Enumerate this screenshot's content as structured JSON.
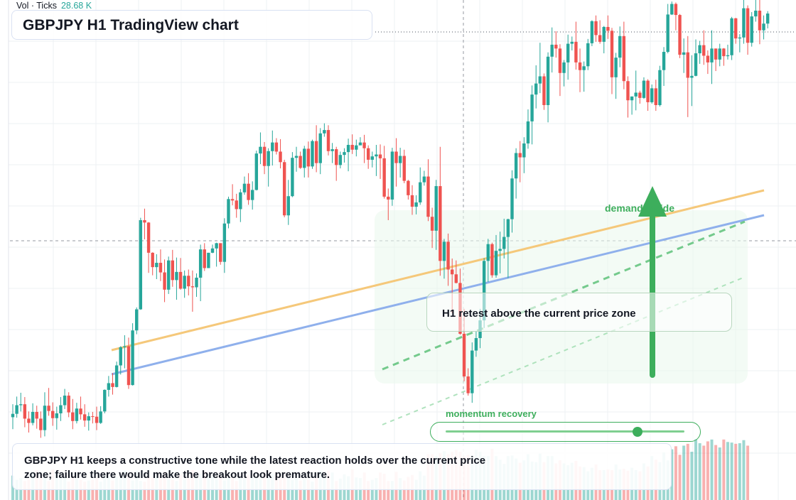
{
  "volume_legend": {
    "label": "Vol · Ticks",
    "value": "28.68 K"
  },
  "title": "GBPJPY H1 TradingView chart",
  "annotations": {
    "retest": "H1 retest above the current price zone",
    "demand": "demand inside",
    "momentum": "momentum recovery",
    "summary": "GBPJPY H1 keeps a constructive tone while the latest reaction holds over the current price zone; failure there would make the breakout look premature."
  },
  "momentum_slider": {
    "level": 0.8
  },
  "colors": {
    "up": "#26a69a",
    "down": "#ef5350",
    "trend_upper": "#f5c87a",
    "trend_lower": "#8fb0ec",
    "accent_green": "#3dae5c",
    "grid": "#eef0f3"
  },
  "chart_data": {
    "type": "candlestick",
    "symbol": "GBPJPY",
    "timeframe": "H1",
    "y_scale": [
      0,
      100
    ],
    "candles": [
      [
        15.2,
        17.9,
        12.7,
        15.9
      ],
      [
        15.9,
        19.5,
        15.1,
        17.7
      ],
      [
        17.7,
        20.3,
        16.4,
        17.9
      ],
      [
        17.9,
        19.4,
        13.1,
        14.9
      ],
      [
        14.9,
        16.4,
        12.0,
        14.0
      ],
      [
        14.0,
        18.1,
        13.5,
        16.3
      ],
      [
        16.3,
        17.6,
        12.8,
        14.9
      ],
      [
        14.9,
        16.4,
        10.9,
        12.5
      ],
      [
        12.5,
        20.4,
        11.2,
        17.6
      ],
      [
        17.6,
        21.3,
        15.5,
        16.5
      ],
      [
        16.5,
        18.3,
        13.4,
        15.0
      ],
      [
        15.0,
        17.4,
        12.6,
        16.0
      ],
      [
        16.0,
        19.4,
        14.4,
        17.7
      ],
      [
        17.7,
        21.1,
        16.9,
        19.7
      ],
      [
        19.7,
        20.4,
        15.2,
        16.2
      ],
      [
        16.2,
        19.0,
        12.7,
        14.4
      ],
      [
        14.4,
        18.2,
        13.9,
        17.0
      ],
      [
        17.0,
        19.5,
        14.7,
        15.8
      ],
      [
        15.8,
        17.9,
        13.2,
        14.5
      ],
      [
        14.5,
        16.2,
        12.4,
        15.4
      ],
      [
        15.4,
        16.3,
        13.9,
        15.3
      ],
      [
        15.3,
        17.4,
        12.5,
        14.0
      ],
      [
        14.0,
        17.5,
        13.8,
        16.4
      ],
      [
        16.4,
        21.0,
        16.0,
        20.9
      ],
      [
        20.9,
        23.8,
        19.5,
        22.3
      ],
      [
        22.3,
        24.4,
        19.9,
        21.5
      ],
      [
        21.5,
        26.8,
        21.4,
        26.0
      ],
      [
        26.0,
        30.0,
        24.1,
        29.8
      ],
      [
        29.8,
        32.3,
        25.4,
        30.0
      ],
      [
        30.0,
        31.8,
        21.1,
        21.9
      ],
      [
        21.9,
        34.8,
        21.8,
        33.3
      ],
      [
        33.3,
        38.1,
        32.5,
        37.7
      ],
      [
        37.7,
        56.8,
        37.6,
        56.3
      ],
      [
        56.3,
        58.7,
        52.3,
        55.8
      ],
      [
        55.8,
        55.9,
        45.3,
        49.5
      ],
      [
        49.5,
        49.6,
        44.8,
        46.5
      ],
      [
        46.5,
        49.2,
        44.0,
        47.4
      ],
      [
        47.4,
        50.2,
        43.6,
        45.4
      ],
      [
        45.4,
        48.1,
        39.2,
        41.8
      ],
      [
        41.8,
        48.7,
        40.9,
        47.9
      ],
      [
        47.9,
        50.1,
        42.4,
        43.8
      ],
      [
        43.8,
        48.5,
        39.7,
        45.5
      ],
      [
        45.5,
        48.4,
        41.8,
        42.0
      ],
      [
        42.0,
        45.8,
        40.1,
        44.7
      ],
      [
        44.7,
        46.0,
        40.6,
        42.5
      ],
      [
        42.5,
        45.8,
        37.2,
        42.3
      ],
      [
        42.3,
        45.2,
        40.3,
        44.3
      ],
      [
        44.3,
        51.2,
        39.4,
        50.2
      ],
      [
        50.2,
        51.5,
        45.7,
        46.3
      ],
      [
        46.3,
        49.5,
        46.3,
        49.5
      ],
      [
        49.5,
        51.2,
        49.4,
        50.4
      ],
      [
        50.4,
        51.6,
        46.6,
        51.5
      ],
      [
        51.5,
        51.5,
        47.0,
        47.6
      ],
      [
        47.6,
        56.7,
        45.3,
        55.6
      ],
      [
        55.6,
        61.2,
        54.6,
        60.7
      ],
      [
        60.7,
        63.8,
        59.4,
        60.4
      ],
      [
        60.4,
        61.8,
        56.8,
        58.6
      ],
      [
        58.6,
        62.8,
        55.9,
        62.1
      ],
      [
        62.1,
        65.4,
        61.6,
        63.9
      ],
      [
        63.9,
        66.1,
        59.5,
        60.5
      ],
      [
        60.5,
        64.4,
        58.5,
        62.6
      ],
      [
        62.6,
        70.8,
        62.5,
        70.2
      ],
      [
        70.2,
        74.6,
        68.0,
        71.6
      ],
      [
        71.6,
        72.6,
        65.9,
        67.6
      ],
      [
        67.6,
        71.3,
        63.3,
        70.7
      ],
      [
        70.7,
        75.0,
        67.7,
        72.5
      ],
      [
        72.5,
        73.4,
        70.0,
        70.6
      ],
      [
        70.6,
        73.2,
        67.1,
        68.4
      ],
      [
        68.4,
        68.9,
        56.9,
        57.3
      ],
      [
        57.3,
        64.7,
        55.3,
        61.3
      ],
      [
        61.3,
        70.5,
        61.1,
        69.3
      ],
      [
        69.3,
        71.6,
        66.4,
        69.7
      ],
      [
        69.7,
        70.6,
        67.0,
        67.2
      ],
      [
        67.2,
        71.8,
        65.2,
        71.2
      ],
      [
        71.2,
        72.7,
        65.2,
        67.5
      ],
      [
        67.5,
        73.1,
        67.0,
        72.8
      ],
      [
        72.8,
        76.1,
        66.3,
        68.2
      ],
      [
        68.2,
        75.5,
        65.9,
        74.4
      ],
      [
        74.4,
        76.5,
        73.7,
        75.1
      ],
      [
        75.1,
        76.1,
        69.8,
        70.7
      ],
      [
        70.7,
        72.4,
        68.2,
        71.1
      ],
      [
        71.1,
        71.6,
        64.5,
        67.8
      ],
      [
        67.8,
        70.6,
        67.1,
        69.9
      ],
      [
        69.9,
        71.3,
        68.3,
        70.5
      ],
      [
        70.5,
        73.3,
        66.5,
        72.0
      ],
      [
        72.0,
        74.2,
        70.1,
        71.0
      ],
      [
        71.0,
        73.1,
        69.6,
        71.9
      ],
      [
        71.9,
        73.6,
        72.1,
        72.5
      ],
      [
        72.5,
        74.1,
        68.2,
        71.3
      ],
      [
        71.3,
        71.9,
        67.0,
        68.9
      ],
      [
        68.9,
        70.6,
        67.3,
        69.6
      ],
      [
        69.6,
        72.0,
        65.5,
        70.0
      ],
      [
        70.0,
        72.1,
        64.9,
        69.2
      ],
      [
        69.2,
        71.8,
        60.8,
        61.2
      ],
      [
        61.2,
        62.9,
        56.3,
        60.6
      ],
      [
        60.6,
        71.4,
        59.3,
        70.6
      ],
      [
        70.6,
        73.4,
        63.3,
        68.2
      ],
      [
        68.2,
        71.4,
        65.2,
        69.7
      ],
      [
        69.7,
        71.0,
        64.0,
        64.5
      ],
      [
        64.5,
        64.7,
        60.6,
        61.5
      ],
      [
        61.5,
        63.6,
        57.4,
        59.1
      ],
      [
        59.1,
        61.5,
        57.5,
        60.0
      ],
      [
        60.0,
        67.3,
        59.5,
        64.2
      ],
      [
        64.2,
        66.6,
        63.5,
        65.4
      ],
      [
        65.4,
        69.0,
        56.1,
        57.0
      ],
      [
        57.0,
        58.9,
        50.5,
        54.1
      ],
      [
        54.1,
        64.7,
        50.1,
        63.4
      ],
      [
        63.4,
        71.6,
        44.7,
        47.8
      ],
      [
        47.8,
        52.4,
        44.1,
        51.8
      ],
      [
        51.8,
        53.5,
        42.6,
        46.0
      ],
      [
        46.0,
        48.3,
        36.9,
        45.0
      ],
      [
        45.0,
        47.9,
        43.1,
        43.2
      ],
      [
        43.2,
        46.2,
        32.4,
        32.6
      ],
      [
        32.6,
        37.8,
        22.7,
        23.7
      ],
      [
        23.7,
        25.4,
        19.7,
        20.2
      ],
      [
        20.2,
        30.8,
        18.2,
        29.1
      ],
      [
        29.1,
        33.2,
        27.8,
        31.7
      ],
      [
        31.7,
        37.8,
        29.6,
        35.4
      ],
      [
        35.4,
        48.4,
        33.8,
        47.8
      ],
      [
        47.8,
        52.4,
        43.4,
        51.3
      ],
      [
        51.3,
        51.6,
        44.3,
        44.8
      ],
      [
        44.8,
        53.2,
        44.3,
        49.9
      ],
      [
        49.9,
        53.9,
        45.2,
        50.3
      ],
      [
        50.3,
        56.6,
        48.3,
        52.8
      ],
      [
        52.8,
        56.6,
        44.2,
        56.5
      ],
      [
        56.5,
        66.7,
        53.7,
        65.0
      ],
      [
        65.0,
        71.3,
        60.8,
        70.3
      ],
      [
        70.3,
        72.8,
        64.2,
        69.4
      ],
      [
        69.4,
        73.6,
        66.1,
        72.3
      ],
      [
        72.3,
        79.4,
        71.2,
        76.9
      ],
      [
        76.9,
        84.4,
        72.1,
        82.5
      ],
      [
        82.5,
        88.6,
        79.6,
        84.8
      ],
      [
        84.8,
        93.3,
        82.8,
        86.3
      ],
      [
        86.3,
        86.9,
        79.3,
        80.3
      ],
      [
        80.3,
        91.3,
        76.7,
        90.4
      ],
      [
        90.4,
        96.5,
        87.1,
        92.9
      ],
      [
        92.9,
        95.7,
        90.2,
        92.1
      ],
      [
        92.1,
        93.0,
        82.2,
        87.0
      ],
      [
        87.0,
        89.7,
        84.2,
        89.2
      ],
      [
        89.2,
        95.0,
        85.6,
        93.1
      ],
      [
        93.1,
        94.6,
        91.7,
        93.5
      ],
      [
        93.5,
        97.7,
        87.7,
        89.2
      ],
      [
        89.2,
        92.1,
        83.0,
        87.6
      ],
      [
        87.6,
        89.4,
        83.1,
        88.4
      ],
      [
        88.4,
        94.1,
        87.6,
        93.2
      ],
      [
        93.2,
        98.0,
        92.6,
        97.8
      ],
      [
        97.8,
        99.0,
        93.5,
        94.9
      ],
      [
        94.9,
        98.0,
        93.1,
        93.5
      ],
      [
        93.5,
        96.8,
        91.1,
        96.6
      ],
      [
        96.6,
        99.0,
        94.1,
        95.8
      ],
      [
        95.8,
        96.4,
        82.6,
        86.1
      ],
      [
        86.1,
        91.2,
        81.6,
        90.2
      ],
      [
        90.2,
        96.7,
        88.2,
        94.7
      ],
      [
        94.7,
        97.7,
        83.6,
        85.3
      ],
      [
        85.3,
        86.3,
        77.7,
        81.3
      ],
      [
        81.3,
        82.1,
        78.3,
        82.1
      ],
      [
        82.1,
        87.5,
        79.2,
        82.9
      ],
      [
        82.9,
        83.3,
        80.6,
        81.8
      ],
      [
        81.8,
        86.1,
        81.6,
        85.4
      ],
      [
        85.4,
        85.7,
        79.1,
        80.9
      ],
      [
        80.9,
        84.6,
        80.6,
        83.8
      ],
      [
        83.8,
        85.6,
        79.1,
        80.3
      ],
      [
        80.3,
        88.5,
        80.0,
        87.6
      ],
      [
        87.6,
        92.4,
        84.3,
        91.4
      ],
      [
        91.4,
        101.4,
        91.1,
        99.2
      ],
      [
        99.2,
        101.9,
        99.1,
        101.4
      ],
      [
        101.4,
        101.7,
        95.9,
        99.1
      ],
      [
        99.1,
        99.3,
        90.1,
        90.8
      ],
      [
        90.8,
        94.2,
        87.0,
        91.3
      ],
      [
        91.3,
        94.7,
        77.8,
        86.0
      ],
      [
        86.0,
        90.7,
        80.1,
        86.4
      ],
      [
        86.4,
        94.0,
        86.3,
        91.1
      ],
      [
        91.1,
        93.7,
        88.9,
        92.8
      ],
      [
        92.8,
        95.9,
        88.7,
        90.6
      ],
      [
        90.6,
        91.7,
        86.8,
        89.2
      ],
      [
        89.2,
        95.9,
        84.7,
        92.1
      ],
      [
        92.1,
        92.1,
        87.4,
        89.8
      ],
      [
        89.8,
        93.1,
        88.4,
        92.1
      ],
      [
        92.1,
        92.2,
        88.5,
        90.5
      ],
      [
        90.5,
        92.9,
        89.8,
        90.7
      ],
      [
        90.7,
        98.7,
        89.7,
        98.4
      ],
      [
        98.4,
        98.5,
        93.1,
        94.2
      ],
      [
        94.2,
        95.1,
        91.3,
        94.4
      ],
      [
        94.4,
        102.5,
        93.1,
        100.5
      ],
      [
        100.5,
        101.1,
        90.8,
        93.3
      ],
      [
        93.3,
        99.7,
        92.5,
        98.8
      ],
      [
        98.8,
        103.6,
        97.7,
        100.0
      ],
      [
        100.0,
        102.6,
        93.0,
        95.9
      ],
      [
        95.9,
        99.0,
        94.0,
        97.3
      ],
      [
        97.3,
        99.9,
        96.3,
        99.4
      ]
    ],
    "volume": [
      0.4,
      0.33,
      0.36,
      0.31,
      0.34,
      0.46,
      0.49,
      0.4,
      0.45,
      0.31,
      0.5,
      0.46,
      0.38,
      0.39,
      0.3,
      0.4,
      0.35,
      0.33,
      0.3,
      0.32,
      0.33,
      0.37,
      0.3,
      0.41,
      0.4,
      0.32,
      0.38,
      0.37,
      0.48,
      0.42,
      0.32,
      0.48,
      0.31,
      0.3,
      0.38,
      0.37,
      0.39,
      0.38,
      0.48,
      0.34,
      0.33,
      0.31,
      0.42,
      0.34,
      0.35,
      0.49,
      0.43,
      0.43,
      0.47,
      0.42,
      0.38,
      0.34,
      0.38,
      0.32,
      0.39,
      0.38,
      0.31,
      0.38,
      0.35,
      0.41,
      0.37,
      0.44,
      0.44,
      0.44,
      0.4,
      0.43,
      0.43,
      0.36,
      0.43,
      0.38,
      0.33,
      0.35,
      0.32,
      0.34,
      0.33,
      0.3,
      0.36,
      0.48,
      0.36,
      0.48,
      0.45,
      0.31,
      0.35,
      0.42,
      0.39,
      0.5,
      0.37,
      0.36,
      0.45,
      0.31,
      0.33,
      0.36,
      0.45,
      0.43,
      0.31,
      0.31,
      0.46,
      0.36,
      0.32,
      0.38,
      0.41,
      0.33,
      0.47,
      0.4,
      0.75,
      0.75,
      0.72,
      0.77,
      0.8,
      0.75,
      0.79,
      0.82,
      0.79,
      0.71,
      0.74,
      0.73,
      0.82,
      0.79,
      0.72,
      0.72,
      0.84,
      0.72,
      0.66,
      0.59,
      0.72,
      0.73,
      0.68,
      0.61,
      0.65,
      0.75,
      0.63,
      0.62,
      0.76,
      0.62,
      0.72,
      0.72,
      0.6,
      0.65,
      0.6,
      0.57,
      0.61,
      0.64,
      0.55,
      0.54,
      0.47,
      0.53,
      0.58,
      0.49,
      0.49,
      0.5,
      0.49,
      0.58,
      0.5,
      0.51,
      0.48,
      0.53,
      0.49,
      0.47,
      0.6,
      0.55,
      0.72,
      0.66,
      0.62,
      0.78,
      0.65,
      0.83,
      0.88,
      0.74,
      0.89,
      0.92,
      0.79,
      1.0,
      0.93,
      0.89,
      0.96,
      0.99,
      0.9,
      0.86,
      0.99,
      0.95,
      0.94,
      0.92,
      0.93,
      0.98,
      0.89
    ]
  }
}
